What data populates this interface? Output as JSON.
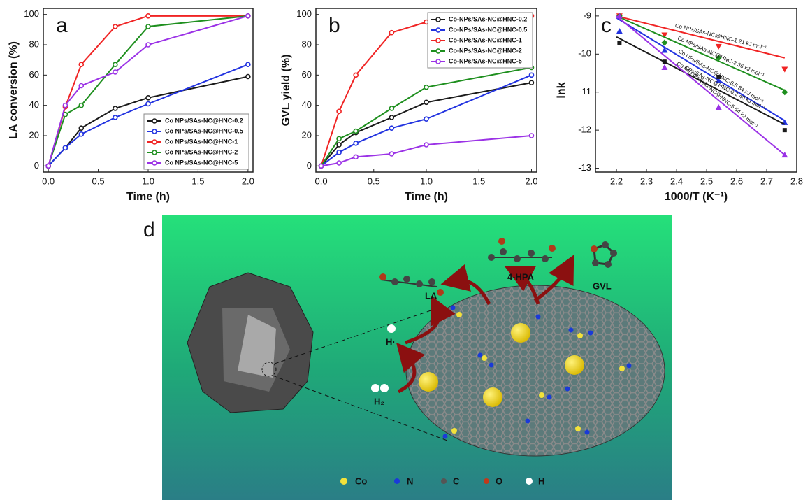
{
  "chart_data": [
    {
      "type": "line",
      "panel": "a",
      "xlabel": "Time (h)",
      "ylabel": "LA conversion (%)",
      "x": [
        0,
        0.17,
        0.33,
        0.67,
        1.0,
        2.0
      ],
      "xlim": [
        -0.05,
        2.05
      ],
      "ylim": [
        -4,
        104
      ],
      "xticks": [
        {
          "value": 0,
          "label": "0.0"
        },
        {
          "value": 0.5,
          "label": "0.5"
        },
        {
          "value": 1,
          "label": "1.0"
        },
        {
          "value": 1.5,
          "label": "1.5"
        },
        {
          "value": 2,
          "label": "2.0"
        }
      ],
      "yticks": [
        0,
        20,
        40,
        60,
        80,
        100
      ],
      "legend": "lower right",
      "series": [
        {
          "name": "Co NPs/SAs-NC@HNC-0.2",
          "color": "#1a1a1a",
          "values": [
            0,
            12,
            25,
            38,
            45,
            59
          ]
        },
        {
          "name": "Co NPs/SAs-NC@HNC-0.5",
          "color": "#2233e0",
          "values": [
            0,
            12,
            21,
            32,
            41,
            67
          ]
        },
        {
          "name": "Co NPs/SAs-NC@HNC-1",
          "color": "#f02424",
          "values": [
            0,
            39,
            67,
            92,
            99,
            99
          ]
        },
        {
          "name": "Co NPs/SAs-NC@HNC-2",
          "color": "#1e8f1e",
          "values": [
            0,
            34,
            40,
            67,
            92,
            99
          ]
        },
        {
          "name": "Co NPs/SAs-NC@HNC-5",
          "color": "#9b32e6",
          "values": [
            0,
            40,
            53,
            62,
            80,
            99
          ]
        }
      ]
    },
    {
      "type": "line",
      "panel": "b",
      "xlabel": "Time (h)",
      "ylabel": "GVL yield (%)",
      "x": [
        0,
        0.17,
        0.33,
        0.67,
        1.0,
        2.0
      ],
      "xlim": [
        -0.05,
        2.05
      ],
      "ylim": [
        -4,
        104
      ],
      "xticks": [
        {
          "value": 0,
          "label": "0.0"
        },
        {
          "value": 0.5,
          "label": "0.5"
        },
        {
          "value": 1,
          "label": "1.0"
        },
        {
          "value": 1.5,
          "label": "1.5"
        },
        {
          "value": 2,
          "label": "2.0"
        }
      ],
      "yticks": [
        0,
        20,
        40,
        60,
        80,
        100
      ],
      "legend": "upper right",
      "series": [
        {
          "name": "Co-NPs/SAs-NC@HNC-0.2",
          "color": "#1a1a1a",
          "values": [
            0,
            14,
            22,
            32,
            42,
            55
          ]
        },
        {
          "name": "Co-NPs/SAs-NC@HNC-0.5",
          "color": "#2233e0",
          "values": [
            0,
            9,
            15,
            25,
            31,
            60
          ]
        },
        {
          "name": "Co-NPs/SAs-NC@HNC-1",
          "color": "#f02424",
          "values": [
            0,
            36,
            60,
            88,
            95,
            99
          ]
        },
        {
          "name": "Co-NPs/SAs-NC@HNC-2",
          "color": "#1e8f1e",
          "values": [
            0,
            18,
            23,
            38,
            52,
            65
          ]
        },
        {
          "name": "Co-NPs/SAs-NC@HNC-5",
          "color": "#9b32e6",
          "values": [
            0,
            2,
            6,
            8,
            14,
            20
          ]
        }
      ]
    },
    {
      "type": "scatter",
      "panel": "c",
      "xlabel": "1000/T (K⁻¹)",
      "ylabel": "lnk",
      "x": [
        2.21,
        2.36,
        2.54,
        2.76
      ],
      "fit_x": [
        2.2,
        2.76
      ],
      "xlim": [
        2.13,
        2.8
      ],
      "ylim": [
        -13.1,
        -8.8
      ],
      "xticks": [
        2.2,
        2.3,
        2.4,
        2.5,
        2.6,
        2.7,
        2.8
      ],
      "yticks": [
        -9,
        -10,
        -11,
        -12,
        -13
      ],
      "series": [
        {
          "name": "Co NPs/SAs-NC@HNC-1 21 kJ mol⁻¹",
          "color": "#f02424",
          "marker": "triangle-down",
          "values": [
            -9.0,
            -9.5,
            -9.8,
            -10.4
          ],
          "fit": [
            -9.0,
            -10.1
          ]
        },
        {
          "name": "Co NPs/SAs-NC@HNC-2 36 kJ mol⁻¹",
          "color": "#1e8f1e",
          "marker": "diamond",
          "values": [
            -9.0,
            -9.7,
            -10.1,
            -11.0
          ],
          "fit": [
            -9.0,
            -10.95
          ]
        },
        {
          "name": "Co NPs/SAs-NC@HNC-0.5 34 kJ mol⁻¹",
          "color": "#2233e0",
          "marker": "triangle",
          "values": [
            -9.4,
            -9.9,
            -10.7,
            -11.8
          ],
          "fit": [
            -9.05,
            -11.75
          ]
        },
        {
          "name": "Co NPs/SAs-NC@HNC-0.2 40 kJ mol⁻¹",
          "color": "#1a1a1a",
          "marker": "square",
          "values": [
            -9.7,
            -10.2,
            -10.6,
            -12.0
          ],
          "fit": [
            -9.55,
            -11.85
          ]
        },
        {
          "name": "Co NPs/SAs-NC@HNC-5 54 kJ mol⁻¹",
          "color": "#9b32e6",
          "marker": "triangle",
          "values": [
            -9.0,
            -10.35,
            -11.4,
            -12.65
          ],
          "fit": [
            -9.0,
            -12.65
          ]
        }
      ]
    }
  ],
  "diagram": {
    "panel": "d",
    "molecules": [
      "LA",
      "4-HPA",
      "GVL"
    ],
    "species": [
      "H·",
      "H₂"
    ],
    "legend": [
      "Co",
      "N",
      "C",
      "O",
      "H"
    ]
  }
}
